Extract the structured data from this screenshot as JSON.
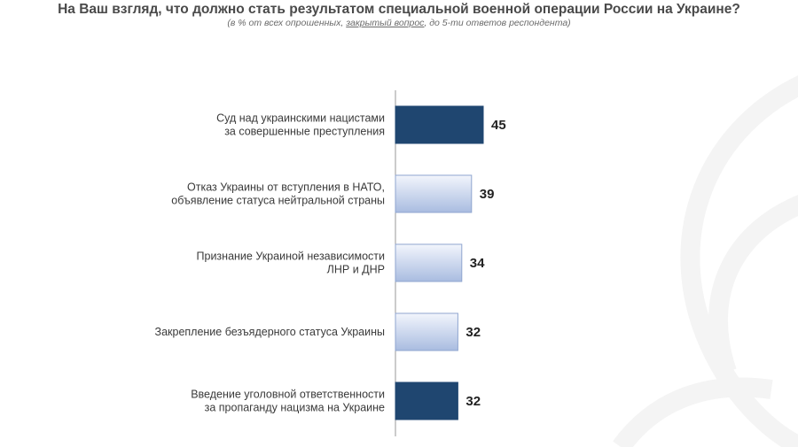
{
  "title": "На Ваш взгляд, что должно стать результатом специальной военной операции России на Украине?",
  "subtitle": {
    "part1": "(в % от всех опрошенных, ",
    "part2": "закрытый вопрос",
    "part3": ", до 5-ти ответов респондента)"
  },
  "colors": {
    "dark": "#1f4670",
    "light_top": "#f2f5fc",
    "light_bottom": "#a9bce0",
    "axis": "#9a9a9a"
  },
  "chart_data": {
    "type": "bar",
    "orientation": "horizontal",
    "categories": [
      [
        "Суд над украинскими нацистами",
        "за совершенные преступления"
      ],
      [
        "Отказ Украины от вступления в НАТО,",
        "объявление статуса нейтральной страны"
      ],
      [
        "Признание Украиной независимости",
        "ЛНР и ДНР"
      ],
      [
        "Закрепление безъядерного статуса Украины"
      ],
      [
        "Введение уголовной ответственности",
        "за пропаганду нацизма на Украине"
      ]
    ],
    "values": [
      45,
      39,
      34,
      32,
      32
    ],
    "styles": [
      "dark",
      "light",
      "light",
      "light",
      "dark"
    ],
    "xlim": [
      0,
      100
    ],
    "grid": false,
    "legend": "none"
  }
}
